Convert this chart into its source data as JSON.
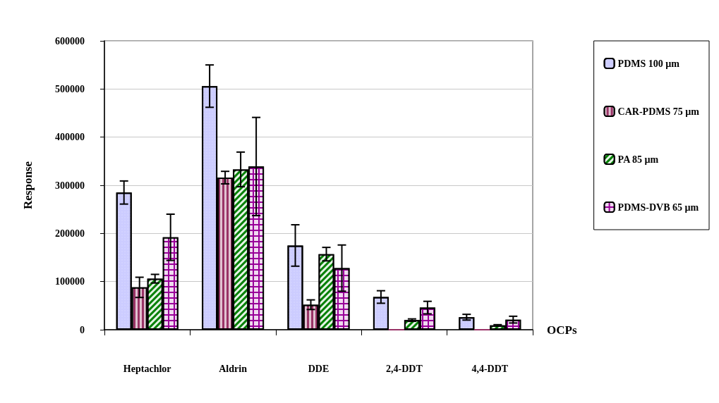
{
  "chart_data": {
    "type": "bar",
    "xlabel": "OCPs",
    "ylabel": "Response",
    "categories": [
      "Heptachlor",
      "Aldrin",
      "DDE",
      "2,4-DDT",
      "4,4-DDT"
    ],
    "series": [
      {
        "name": "PDMS 100 µm",
        "color": "#ccccff",
        "values": [
          285000,
          506000,
          175000,
          68000,
          26000
        ],
        "errors": [
          24000,
          44000,
          43000,
          13000,
          6000
        ]
      },
      {
        "name": "CAR-PDMS 75 µm",
        "color": "#993366",
        "values": [
          88000,
          316000,
          52000,
          0,
          0
        ],
        "errors": [
          21000,
          13000,
          10000,
          null,
          null
        ]
      },
      {
        "name": "PA 85 µm",
        "color": "#008000",
        "values": [
          106000,
          333000,
          157000,
          20000,
          9000
        ],
        "errors": [
          9000,
          36000,
          14000,
          2500,
          1500
        ]
      },
      {
        "name": "PDMS-DVB 65 µm",
        "color": "#990099",
        "values": [
          192000,
          339000,
          128000,
          46000,
          21000
        ],
        "errors": [
          48000,
          102000,
          48000,
          13000,
          7000
        ]
      }
    ],
    "ylim": [
      0,
      600000
    ],
    "yticks": [
      0,
      100000,
      200000,
      300000,
      400000,
      500000,
      600000
    ],
    "grid": "y",
    "legend": "right"
  }
}
